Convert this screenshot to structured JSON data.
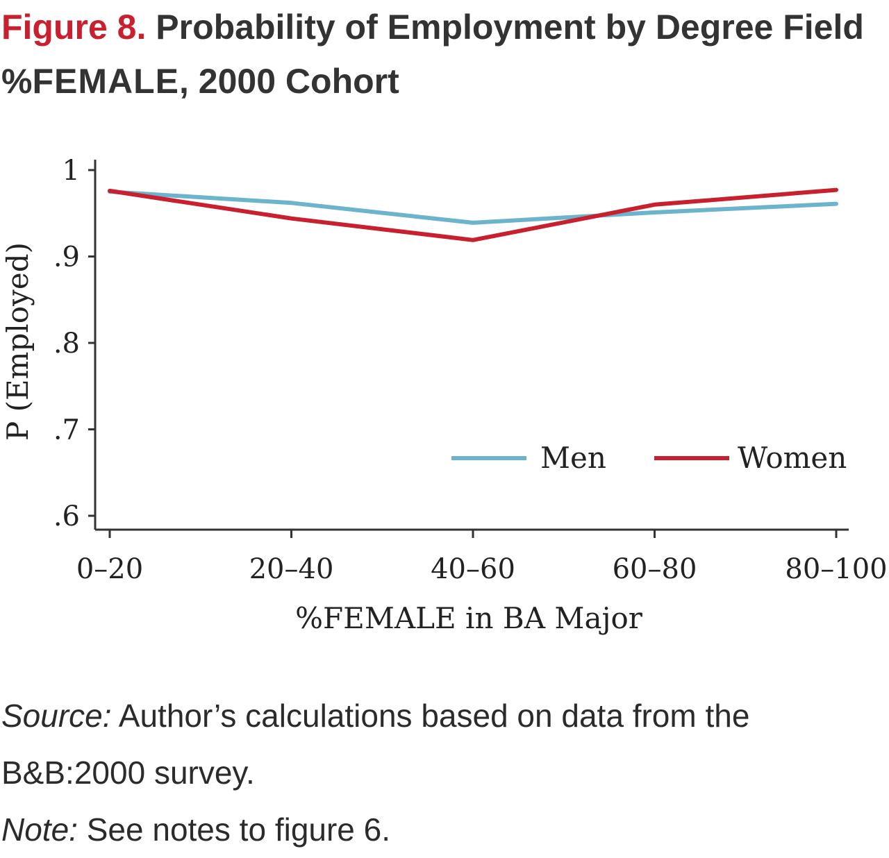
{
  "figure": {
    "label": "Figure 8.",
    "title_pre": "Probability of Employment by Degree Field %",
    "title_sc": "FEMALE",
    "title_post": ", 2000 Cohort"
  },
  "chart_data": {
    "type": "line",
    "xlabel": "%FEMALE in BA Major",
    "ylabel": "P (Employed)",
    "categories": [
      "0–20",
      "20–40",
      "40–60",
      "60–80",
      "80–100"
    ],
    "ylim": [
      0.6,
      1.0
    ],
    "yticks": [
      0.6,
      0.7,
      0.8,
      0.9,
      1.0
    ],
    "ytick_labels": [
      ".6",
      ".7",
      ".8",
      ".9",
      "1"
    ],
    "legend_position": "lower-right",
    "series": [
      {
        "name": "Men",
        "color": "#6cb4cc",
        "values": [
          0.975,
          0.962,
          0.939,
          0.951,
          0.961
        ]
      },
      {
        "name": "Women",
        "color": "#c8202f",
        "values": [
          0.976,
          0.944,
          0.919,
          0.96,
          0.977
        ]
      }
    ]
  },
  "notes": {
    "source_label": "Source:",
    "source_text": "Author’s calculations based on data from the B&B:2000 survey.",
    "note_label": "Note:",
    "note_text": "See notes to figure 6."
  }
}
